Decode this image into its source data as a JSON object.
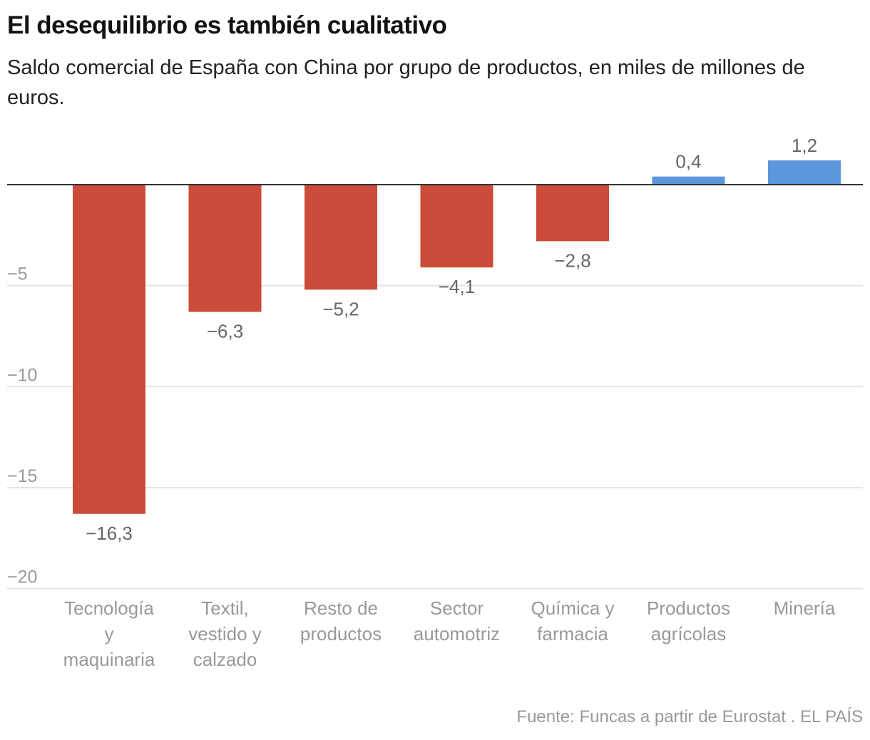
{
  "title": "El desequilibrio es también cualitativo",
  "subtitle": "Saldo comercial de España con China por grupo de productos, en miles de millones de euros.",
  "source": "Fuente: Funcas a partir de Eurostat . EL PAÍS",
  "chart_data": {
    "type": "bar",
    "categories": [
      [
        "Tecnología",
        "y",
        "maquinaria"
      ],
      [
        "Textil,",
        "vestido y",
        "calzado"
      ],
      [
        "Resto de",
        "productos"
      ],
      [
        "Sector",
        "automotriz"
      ],
      [
        "Química y",
        "farmacia"
      ],
      [
        "Productos",
        "agrícolas"
      ],
      [
        "Minería"
      ]
    ],
    "values": [
      -16.3,
      -6.3,
      -5.2,
      -4.1,
      -2.8,
      0.4,
      1.2
    ],
    "value_labels": [
      "−16,3",
      "−6,3",
      "−5,2",
      "−4,1",
      "−2,8",
      "0,4",
      "1,2"
    ],
    "yticks": [
      -5,
      -10,
      -15,
      -20
    ],
    "ytick_labels": [
      "−5",
      "−10",
      "−15",
      "−20"
    ],
    "ylim": [
      -20,
      1.2
    ],
    "grid": true,
    "colors": {
      "negative": "#cb4c3a",
      "positive": "#5b96db"
    }
  }
}
